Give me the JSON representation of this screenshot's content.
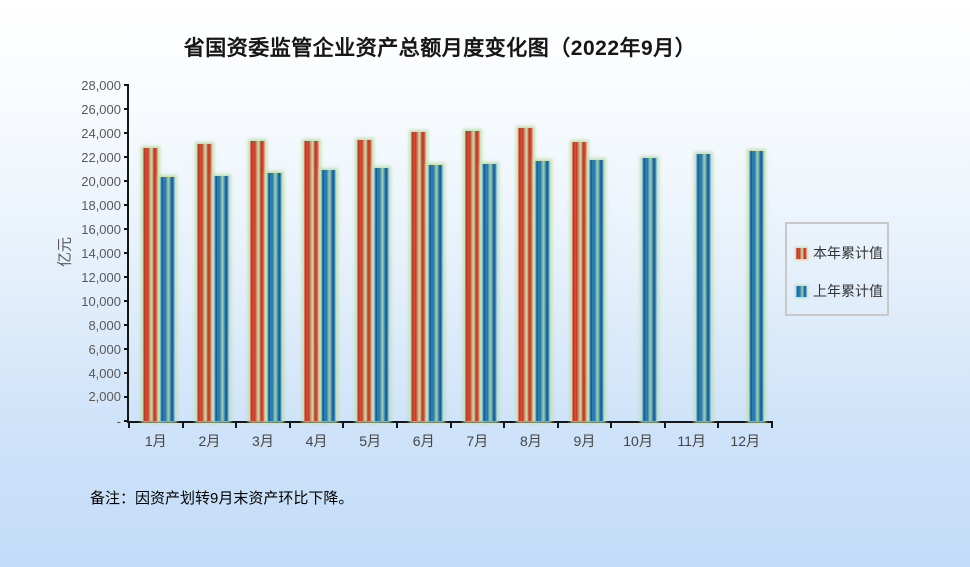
{
  "title": "省国资委监管企业资产总额月度变化图（2022年9月）",
  "y_axis_title": "亿元",
  "note": "备注：因资产划转9月末资产环比下降。",
  "legend": {
    "items": [
      {
        "label": "本年累计值",
        "color": "#c0392b"
      },
      {
        "label": "上年累计值",
        "color": "#2e86c1"
      }
    ]
  },
  "chart_data": {
    "type": "bar",
    "title": "省国资委监管企业资产总额月度变化图（2022年9月）",
    "xlabel": "",
    "ylabel": "亿元",
    "ylim": [
      0,
      28000
    ],
    "ytick_step": 2000,
    "grid": false,
    "legend_position": "right",
    "categories": [
      "1月",
      "2月",
      "3月",
      "4月",
      "5月",
      "6月",
      "7月",
      "8月",
      "9月",
      "10月",
      "11月",
      "12月"
    ],
    "series": [
      {
        "name": "本年累计值",
        "color": "#c0392b",
        "values": [
          22750,
          23050,
          23300,
          23350,
          23450,
          24100,
          24150,
          24400,
          23250,
          null,
          null,
          null
        ]
      },
      {
        "name": "上年累计值",
        "color": "#2e86c1",
        "values": [
          20350,
          20400,
          20700,
          20950,
          21050,
          21300,
          21400,
          21650,
          21750,
          21950,
          22250,
          22500
        ]
      }
    ],
    "yticks": [
      {
        "label": "28,000",
        "value": 28000
      },
      {
        "label": "26,000",
        "value": 26000
      },
      {
        "label": "24,000",
        "value": 24000
      },
      {
        "label": "22,000",
        "value": 22000
      },
      {
        "label": "20,000",
        "value": 20000
      },
      {
        "label": "18,000",
        "value": 18000
      },
      {
        "label": "16,000",
        "value": 16000
      },
      {
        "label": "14,000",
        "value": 14000
      },
      {
        "label": "12,000",
        "value": 12000
      },
      {
        "label": "10,000",
        "value": 10000
      },
      {
        "label": "8,000",
        "value": 8000
      },
      {
        "label": "6,000",
        "value": 6000
      },
      {
        "label": "4,000",
        "value": 4000
      },
      {
        "label": "2,000",
        "value": 2000
      },
      {
        "label": "-",
        "value": 0
      }
    ]
  }
}
